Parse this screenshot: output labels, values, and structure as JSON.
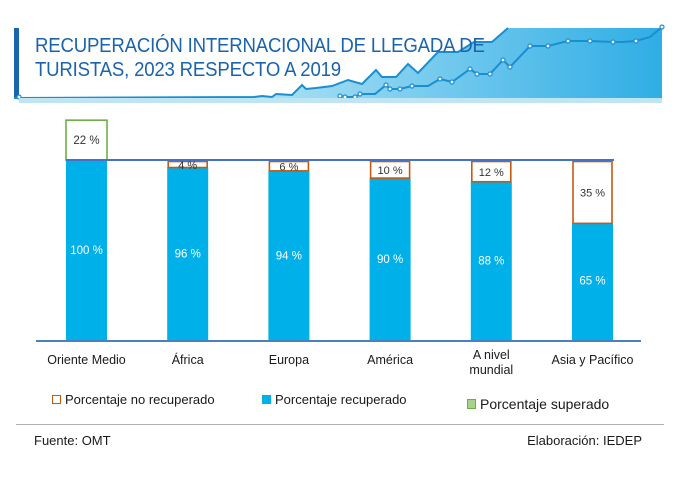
{
  "header": {
    "title_line1": "RECUPERACIÓN INTERNACIONAL DE LLEGADA DE",
    "title_line2": "TURISTAS, 2023 RESPECTO A 2019"
  },
  "colors": {
    "recovered": "#00b0e8",
    "not_recovered_border": "#c55a11",
    "exceeded_border": "#70ad47",
    "exceeded_fill": "#a9d18e",
    "reference_line": "#4472c4",
    "title": "#1a63ad"
  },
  "chart_data": {
    "type": "bar",
    "title": "RECUPERACIÓN INTERNACIONAL DE LLEGADA DE TURISTAS, 2023 RESPECTO A 2019",
    "xlabel": "",
    "ylabel": "",
    "ylim": [
      0,
      125
    ],
    "categories": [
      "Oriente Medio",
      "África",
      "Europa",
      "América",
      "A nivel mundial",
      "Asia y Pacífico"
    ],
    "category_labels": [
      [
        "Oriente Medio"
      ],
      [
        "África"
      ],
      [
        "Europa"
      ],
      [
        "América"
      ],
      [
        "A nivel",
        "mundial"
      ],
      [
        "Asia y Pacífico"
      ]
    ],
    "reference_line": 100,
    "series": [
      {
        "name": "Porcentaje recuperado",
        "values": [
          100,
          96,
          94,
          90,
          88,
          65
        ],
        "labels": [
          "100 %",
          "96 %",
          "94 %",
          "90 %",
          "88 %",
          "65 %"
        ]
      },
      {
        "name": "Porcentaje no recuperado",
        "values": [
          0,
          4,
          6,
          10,
          12,
          35
        ],
        "labels": [
          "",
          "4 %",
          "6 %",
          "10 %",
          "12 %",
          "35 %"
        ]
      },
      {
        "name": "Porcentaje superado",
        "values": [
          22,
          0,
          0,
          0,
          0,
          0
        ],
        "labels": [
          "22 %",
          "",
          "",
          "",
          "",
          ""
        ]
      }
    ],
    "legend": [
      "Porcentaje no recuperado",
      "Porcentaje recuperado",
      "Porcentaje superado"
    ],
    "legend_position": "bottom",
    "grid": false
  },
  "footer": {
    "source": "Fuente: OMT",
    "credit": "Elaboración: IEDEP"
  }
}
